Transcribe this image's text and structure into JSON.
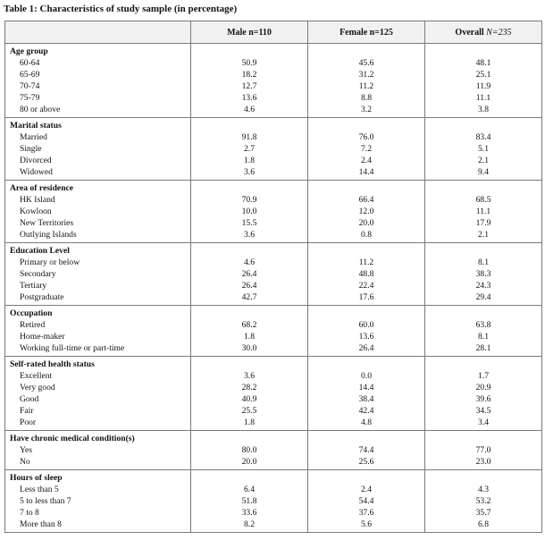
{
  "caption": "Table 1: Characteristics of study sample (in percentage)",
  "columns": {
    "male": "Male n=110",
    "female": "Female n=125",
    "overall_prefix": "Overall ",
    "overall_n": "N=235"
  },
  "sections": [
    {
      "title": "Age group",
      "rows": [
        {
          "label": "60-64",
          "male": "50.9",
          "female": "45.6",
          "overall": "48.1"
        },
        {
          "label": "65-69",
          "male": "18.2",
          "female": "31.2",
          "overall": "25.1"
        },
        {
          "label": "70-74",
          "male": "12.7",
          "female": "11.2",
          "overall": "11.9"
        },
        {
          "label": "75-79",
          "male": "13.6",
          "female": "8.8",
          "overall": "11.1"
        },
        {
          "label": "80 or above",
          "male": "4.6",
          "female": "3.2",
          "overall": "3.8"
        }
      ]
    },
    {
      "title": "Marital status",
      "rows": [
        {
          "label": "Married",
          "male": "91.8",
          "female": "76.0",
          "overall": "83.4"
        },
        {
          "label": "Single",
          "male": "2.7",
          "female": "7.2",
          "overall": "5.1"
        },
        {
          "label": "Divorced",
          "male": "1.8",
          "female": "2.4",
          "overall": "2.1"
        },
        {
          "label": "Widowed",
          "male": "3.6",
          "female": "14.4",
          "overall": "9.4"
        }
      ]
    },
    {
      "title": "Area of residence",
      "rows": [
        {
          "label": "HK Island",
          "male": "70.9",
          "female": "66.4",
          "overall": "68.5"
        },
        {
          "label": "Kowloon",
          "male": "10.0",
          "female": "12.0",
          "overall": "11.1"
        },
        {
          "label": "New Territories",
          "male": "15.5",
          "female": "20.0",
          "overall": "17.9"
        },
        {
          "label": "Outlying Islands",
          "male": "3.6",
          "female": "0.8",
          "overall": "2.1"
        }
      ]
    },
    {
      "title": "Education Level",
      "rows": [
        {
          "label": "Primary or below",
          "male": "4.6",
          "female": "11.2",
          "overall": "8.1"
        },
        {
          "label": "Secondary",
          "male": "26.4",
          "female": "48.8",
          "overall": "38.3"
        },
        {
          "label": "Tertiary",
          "male": "26.4",
          "female": "22.4",
          "overall": "24.3"
        },
        {
          "label": "Postgraduate",
          "male": "42.7",
          "female": "17.6",
          "overall": "29.4"
        }
      ]
    },
    {
      "title": "Occupation",
      "rows": [
        {
          "label": "Retired",
          "male": "68.2",
          "female": "60.0",
          "overall": "63.8"
        },
        {
          "label": "Home-maker",
          "male": "1.8",
          "female": "13.6",
          "overall": "8.1"
        },
        {
          "label": "Working full-time or part-time",
          "male": "30.0",
          "female": "26.4",
          "overall": "28.1"
        }
      ]
    },
    {
      "title": "Self-rated health status",
      "rows": [
        {
          "label": "Excellent",
          "male": "3.6",
          "female": "0.0",
          "overall": "1.7"
        },
        {
          "label": "Very good",
          "male": "28.2",
          "female": "14.4",
          "overall": "20.9"
        },
        {
          "label": "Good",
          "male": "40.9",
          "female": "38.4",
          "overall": "39.6"
        },
        {
          "label": "Fair",
          "male": "25.5",
          "female": "42.4",
          "overall": "34.5"
        },
        {
          "label": "Poor",
          "male": "1.8",
          "female": "4.8",
          "overall": "3.4"
        }
      ]
    },
    {
      "title": "Have chronic medical condition(s)",
      "rows": [
        {
          "label": "Yes",
          "male": "80.0",
          "female": "74.4",
          "overall": "77.0"
        },
        {
          "label": "No",
          "male": "20.0",
          "female": "25.6",
          "overall": "23.0"
        }
      ]
    },
    {
      "title": "Hours of sleep",
      "rows": [
        {
          "label": "Less than 5",
          "male": "6.4",
          "female": "2.4",
          "overall": "4.3"
        },
        {
          "label": "5 to less than 7",
          "male": "51.8",
          "female": "54.4",
          "overall": "53.2"
        },
        {
          "label": "7 to 8",
          "male": "33.6",
          "female": "37.6",
          "overall": "35.7"
        },
        {
          "label": "More than 8",
          "male": "8.2",
          "female": "5.6",
          "overall": "6.8"
        }
      ]
    }
  ]
}
